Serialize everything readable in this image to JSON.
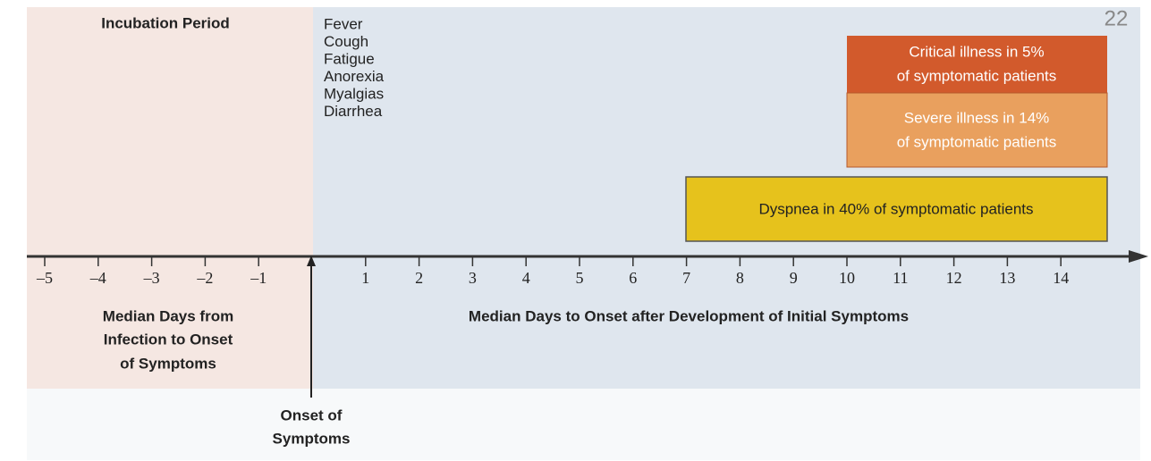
{
  "page_number": "22",
  "incubation": {
    "title": "Incubation Period",
    "caption": [
      "Median Days from",
      "Infection to Onset",
      "of Symptoms"
    ]
  },
  "symptoms": [
    "Fever",
    "Cough",
    "Fatigue",
    "Anorexia",
    "Myalgias",
    "Diarrhea"
  ],
  "boxes": [
    {
      "lines": [
        "Critical illness in 5%",
        "of symptomatic patients"
      ]
    },
    {
      "lines": [
        "Severe illness in 14%",
        "of symptomatic patients"
      ]
    },
    {
      "lines": [
        "Dyspnea in 40% of symptomatic patients"
      ]
    }
  ],
  "axis": {
    "ticks": [
      "–5",
      "–4",
      "–3",
      "–2",
      "–1",
      "1",
      "2",
      "3",
      "4",
      "5",
      "6",
      "7",
      "8",
      "9",
      "10",
      "11",
      "12",
      "13",
      "14"
    ],
    "caption": "Median Days to Onset after Development of Initial Symptoms"
  },
  "onset": [
    "Onset of",
    "Symptoms"
  ]
}
